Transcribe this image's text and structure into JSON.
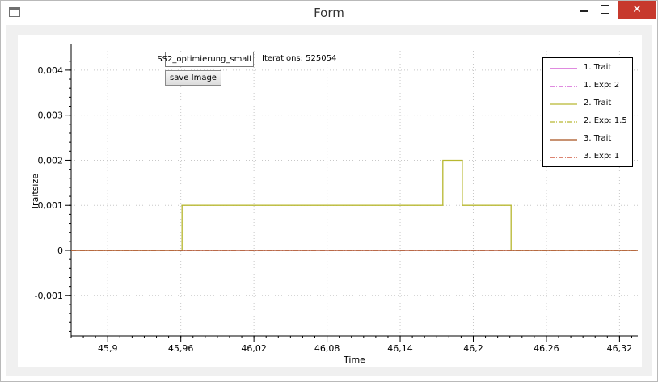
{
  "window": {
    "title": "Form",
    "controls": {
      "minimize": "minimize",
      "maximize": "maximize",
      "close": "✕"
    }
  },
  "toolbar": {
    "file_input_value": "SS2_optimierung_small",
    "iterations_text": "Iterations: 525054",
    "save_label": "save Image"
  },
  "chart_data": {
    "type": "line",
    "xlabel": "Time",
    "ylabel": "Traitsize",
    "xlim": [
      45.87,
      46.335
    ],
    "ylim": [
      -0.0019,
      0.0045
    ],
    "x_ticks": [
      45.9,
      45.96,
      46.02,
      46.08,
      46.14,
      46.2,
      46.26,
      46.32
    ],
    "x_tick_labels": [
      "45,9",
      "45,96",
      "46,02",
      "46,08",
      "46,14",
      "46,2",
      "46,26",
      "46,32"
    ],
    "y_ticks": [
      -0.001,
      0,
      0.001,
      0.002,
      0.003,
      0.004
    ],
    "y_tick_labels": [
      "-0,001",
      "0",
      "0,001",
      "0,002",
      "0,003",
      "0,004"
    ],
    "grid": true,
    "legend_position": "top-right",
    "series": [
      {
        "name": "1. Trait",
        "color": "#cc44cc",
        "dash": "solid",
        "x": [
          45.87,
          46.335
        ],
        "y": [
          0,
          0
        ]
      },
      {
        "name": "1. Exp: 2",
        "color": "#cc44cc",
        "dash": "dashdot",
        "x": [
          45.87,
          46.335
        ],
        "y": [
          0,
          0
        ]
      },
      {
        "name": "2. Trait",
        "color": "#b8b830",
        "dash": "solid",
        "x": [
          45.87,
          45.961,
          45.961,
          46.175,
          46.175,
          46.191,
          46.191,
          46.231,
          46.231,
          46.335
        ],
        "y": [
          0,
          0,
          0.001,
          0.001,
          0.002,
          0.002,
          0.001,
          0.001,
          0,
          0
        ]
      },
      {
        "name": "2. Exp: 1.5",
        "color": "#b8b830",
        "dash": "dashdot",
        "x": [
          45.87,
          46.335
        ],
        "y": [
          0,
          0
        ]
      },
      {
        "name": "3. Trait",
        "color": "#a8521e",
        "dash": "solid",
        "x": [
          45.87,
          46.335
        ],
        "y": [
          0,
          0
        ]
      },
      {
        "name": "3. Exp: 1",
        "color": "#c83c1e",
        "dash": "dashdot",
        "x": [
          45.87,
          46.335
        ],
        "y": [
          0,
          0
        ]
      }
    ]
  }
}
